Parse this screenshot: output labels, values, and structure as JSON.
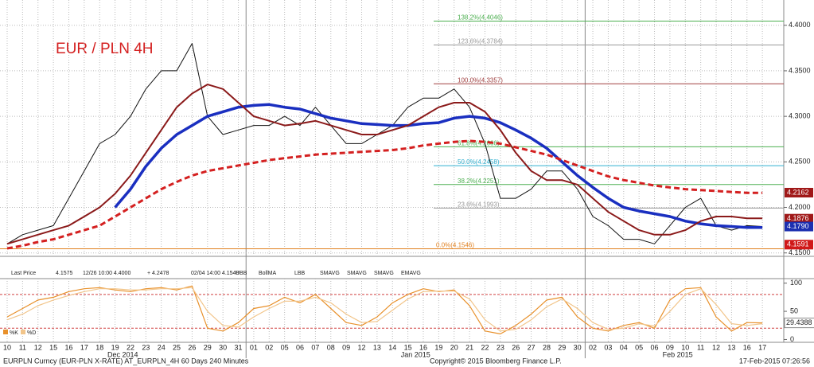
{
  "chart_data": [
    {
      "type": "line",
      "title": "EUR / PLN 4H",
      "categories": [
        "10",
        "11",
        "12",
        "15",
        "16",
        "17",
        "18",
        "19",
        "22",
        "23",
        "24",
        "25",
        "26",
        "29",
        "30",
        "31",
        "01",
        "02",
        "05",
        "06",
        "07",
        "08",
        "09",
        "12",
        "13",
        "14",
        "15",
        "16",
        "19",
        "20",
        "21",
        "22",
        "23",
        "26",
        "27",
        "28",
        "29",
        "30",
        "02",
        "03",
        "04",
        "05",
        "06",
        "09",
        "10",
        "11",
        "12",
        "13",
        "16",
        "17"
      ],
      "month_labels": [
        "Dec 2014",
        "Jan 2015",
        "Feb 2015"
      ],
      "ylim": [
        4.148,
        4.426
      ],
      "yticks": [
        {
          "value": 4.15,
          "label": "4.1500"
        },
        {
          "value": 4.2,
          "label": "4.2000"
        },
        {
          "value": 4.25,
          "label": "4.2500"
        },
        {
          "value": 4.3,
          "label": "4.3000"
        },
        {
          "value": 4.35,
          "label": "4.3500"
        },
        {
          "value": 4.4,
          "label": "4.4000"
        }
      ],
      "grid": true,
      "legend": [
        "Last Price",
        "4.1575",
        "12/26 10:00 4.4000",
        "+ 4.2478",
        "02/04 14:00 4.1548",
        "UBB",
        "BollMA",
        "LBB",
        "SMAVG",
        "SMAVG",
        "SMAVG",
        "EMAVG"
      ],
      "series": [
        {
          "color": "#111111",
          "width": 1,
          "dashed": false,
          "values": [
            4.16,
            4.17,
            4.175,
            4.18,
            4.21,
            4.24,
            4.27,
            4.28,
            4.3,
            4.33,
            4.35,
            4.35,
            4.38,
            4.3,
            4.28,
            4.285,
            4.29,
            4.29,
            4.3,
            4.29,
            4.31,
            4.29,
            4.27,
            4.27,
            4.28,
            4.29,
            4.31,
            4.32,
            4.32,
            4.33,
            4.31,
            4.27,
            4.21,
            4.21,
            4.22,
            4.24,
            4.24,
            4.22,
            4.19,
            4.18,
            4.165,
            4.165,
            4.16,
            4.18,
            4.2,
            4.21,
            4.18,
            4.175,
            4.18,
            4.179
          ]
        },
        {
          "color": "#1a2fc0",
          "width": 3.5,
          "dashed": false,
          "values": [
            null,
            null,
            null,
            null,
            null,
            null,
            null,
            4.2,
            4.22,
            4.245,
            4.265,
            4.28,
            4.29,
            4.3,
            4.305,
            4.31,
            4.312,
            4.313,
            4.31,
            4.308,
            4.303,
            4.298,
            4.295,
            4.292,
            4.291,
            4.29,
            4.29,
            4.292,
            4.293,
            4.298,
            4.3,
            4.298,
            4.293,
            4.285,
            4.276,
            4.265,
            4.25,
            4.235,
            4.222,
            4.21,
            4.2,
            4.196,
            4.193,
            4.19,
            4.185,
            4.182,
            4.18,
            4.179,
            4.178,
            4.178
          ]
        },
        {
          "color": "#8b1a1a",
          "width": 2,
          "dashed": false,
          "values": [
            4.16,
            4.165,
            4.17,
            4.175,
            4.18,
            4.19,
            4.2,
            4.215,
            4.235,
            4.26,
            4.285,
            4.31,
            4.325,
            4.335,
            4.33,
            4.315,
            4.3,
            4.295,
            4.29,
            4.292,
            4.295,
            4.29,
            4.285,
            4.28,
            4.28,
            4.285,
            4.29,
            4.3,
            4.31,
            4.315,
            4.315,
            4.305,
            4.285,
            4.26,
            4.24,
            4.23,
            4.23,
            4.225,
            4.21,
            4.195,
            4.185,
            4.175,
            4.17,
            4.17,
            4.175,
            4.185,
            4.19,
            4.19,
            4.188,
            4.188
          ]
        },
        {
          "color": "#d42020",
          "width": 3,
          "dashed": true,
          "values": [
            4.155,
            4.158,
            4.162,
            4.165,
            4.17,
            4.175,
            4.18,
            4.19,
            4.2,
            4.21,
            4.22,
            4.228,
            4.235,
            4.24,
            4.243,
            4.246,
            4.249,
            4.252,
            4.254,
            4.256,
            4.258,
            4.259,
            4.26,
            4.261,
            4.262,
            4.263,
            4.265,
            4.268,
            4.27,
            4.272,
            4.273,
            4.272,
            4.27,
            4.266,
            4.262,
            4.258,
            4.252,
            4.246,
            4.24,
            4.234,
            4.23,
            4.227,
            4.224,
            4.222,
            4.22,
            4.219,
            4.218,
            4.217,
            4.216,
            4.216
          ]
        }
      ],
      "fib_levels": [
        {
          "label": "138.2%(4.4046)",
          "value": 4.4046,
          "color": "#4caf50"
        },
        {
          "label": "123.6%(4.3784)",
          "value": 4.3784,
          "color": "#999999"
        },
        {
          "label": "100.0%(4.3357)",
          "value": 4.3357,
          "color": "#a04040"
        },
        {
          "label": "61.8%(4.2666)",
          "value": 4.2666,
          "color": "#4caf50"
        },
        {
          "label": "50.0%(4.2458)",
          "value": 4.2458,
          "color": "#30b0d0"
        },
        {
          "label": "38.2%(4.2251)",
          "value": 4.2251,
          "color": "#4caf50"
        },
        {
          "label": "23.6%(4.1993)",
          "value": 4.1993,
          "color": "#999999"
        },
        {
          "label": "0.0%(4.1546)",
          "value": 4.1546,
          "color": "#e08020"
        }
      ],
      "price_tags": [
        {
          "value": 4.2162,
          "label": "4.2162",
          "color": "#a01818"
        },
        {
          "value": 4.1876,
          "label": "4.1876",
          "color": "#a01818"
        },
        {
          "value": 4.179,
          "label": "4.1790",
          "color": "#1c2fb0"
        },
        {
          "value": 4.1591,
          "label": "4.1591",
          "color": "#d01818"
        }
      ]
    },
    {
      "type": "line",
      "ylim": [
        -5,
        108
      ],
      "yticks": [
        0,
        50,
        100
      ],
      "levels": [
        20,
        80
      ],
      "legend": [
        "%K",
        "%D"
      ],
      "series": [
        {
          "color": "#e8902a",
          "width": 1.2,
          "dashed": false,
          "values": [
            40,
            55,
            70,
            75,
            85,
            90,
            92,
            88,
            85,
            90,
            92,
            88,
            95,
            20,
            15,
            30,
            55,
            60,
            75,
            65,
            80,
            55,
            30,
            25,
            40,
            65,
            80,
            90,
            85,
            88,
            60,
            15,
            10,
            25,
            45,
            70,
            75,
            40,
            20,
            15,
            25,
            30,
            20,
            70,
            90,
            92,
            40,
            15,
            30,
            29.4388
          ]
        },
        {
          "color": "#f2c58a",
          "width": 1.2,
          "dashed": false,
          "values": [
            35,
            45,
            60,
            70,
            78,
            85,
            90,
            90,
            88,
            88,
            90,
            90,
            92,
            50,
            25,
            22,
            40,
            55,
            68,
            68,
            75,
            65,
            45,
            30,
            32,
            52,
            72,
            85,
            86,
            86,
            72,
            35,
            15,
            18,
            35,
            58,
            72,
            55,
            30,
            18,
            20,
            28,
            24,
            50,
            80,
            90,
            62,
            28,
            25,
            28
          ]
        }
      ]
    }
  ],
  "footer": [
    "EURPLN Curncy (EUR-PLN X-RATE) AT_EURPLN_4H 60 Days 240 Minutes",
    "Copyright© 2015 Bloomberg Finance L.P.",
    "17-Feb-2015 07:26:56"
  ]
}
